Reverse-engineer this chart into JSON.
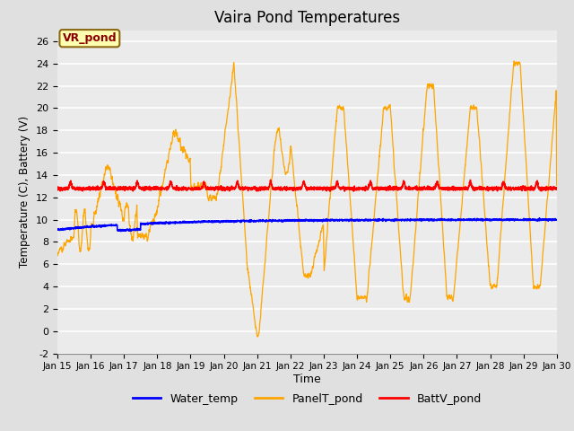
{
  "title": "Vaira Pond Temperatures",
  "xlabel": "Time",
  "ylabel": "Temperature (C), Battery (V)",
  "ylim": [
    -2,
    27
  ],
  "yticks": [
    -2,
    0,
    2,
    4,
    6,
    8,
    10,
    12,
    14,
    16,
    18,
    20,
    22,
    24,
    26
  ],
  "xlim": [
    0,
    15
  ],
  "xtick_labels": [
    "Jan 15",
    "Jan 16",
    "Jan 17",
    "Jan 18",
    "Jan 19",
    "Jan 20",
    "Jan 21",
    "Jan 22",
    "Jan 23",
    "Jan 24",
    "Jan 25",
    "Jan 26",
    "Jan 27",
    "Jan 28",
    "Jan 29",
    "Jan 30"
  ],
  "xtick_positions": [
    0,
    1,
    2,
    3,
    4,
    5,
    6,
    7,
    8,
    9,
    10,
    11,
    12,
    13,
    14,
    15
  ],
  "fig_bg_color": "#e0e0e0",
  "plot_bg_color": "#ebebeb",
  "grid_color": "white",
  "annotation_text": "VR_pond",
  "annotation_bg": "#ffffb0",
  "annotation_border": "#8B6914",
  "water_color": "blue",
  "panel_color": "orange",
  "batt_color": "red",
  "legend_labels": [
    "Water_temp",
    "PanelT_pond",
    "BattV_pond"
  ]
}
